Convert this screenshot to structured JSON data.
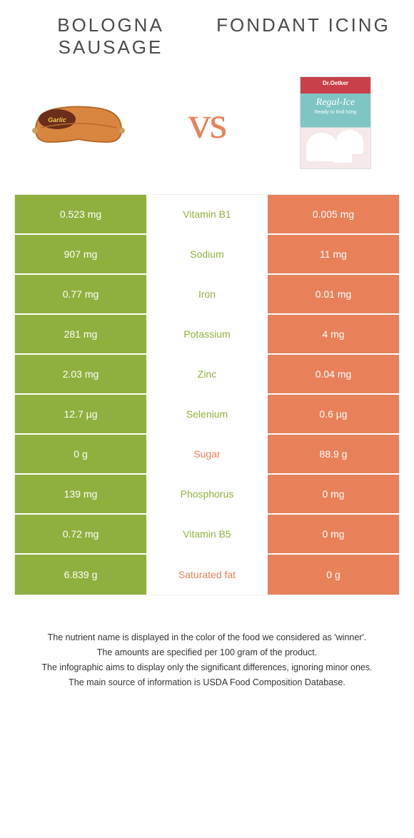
{
  "colors": {
    "green": "#8fb03e",
    "orange": "#e8815a",
    "green_text": "#8fb03e",
    "orange_text": "#e8815a"
  },
  "food_left": {
    "title": "Bologna sausage"
  },
  "food_right": {
    "title": "Fondant icing"
  },
  "vs": "vs",
  "rows": [
    {
      "nutrient": "Vitamin B1",
      "left": "0.523 mg",
      "right": "0.005 mg",
      "winner": "left"
    },
    {
      "nutrient": "Sodium",
      "left": "907 mg",
      "right": "11 mg",
      "winner": "left"
    },
    {
      "nutrient": "Iron",
      "left": "0.77 mg",
      "right": "0.01 mg",
      "winner": "left"
    },
    {
      "nutrient": "Potassium",
      "left": "281 mg",
      "right": "4 mg",
      "winner": "left"
    },
    {
      "nutrient": "Zinc",
      "left": "2.03 mg",
      "right": "0.04 mg",
      "winner": "left"
    },
    {
      "nutrient": "Selenium",
      "left": "12.7 µg",
      "right": "0.6 µg",
      "winner": "left"
    },
    {
      "nutrient": "Sugar",
      "left": "0 g",
      "right": "88.9 g",
      "winner": "right"
    },
    {
      "nutrient": "Phosphorus",
      "left": "139 mg",
      "right": "0 mg",
      "winner": "left"
    },
    {
      "nutrient": "Vitamin B5",
      "left": "0.72 mg",
      "right": "0 mg",
      "winner": "left"
    },
    {
      "nutrient": "Saturated fat",
      "left": "6.839 g",
      "right": "0 g",
      "winner": "right"
    }
  ],
  "footer": {
    "line1": "The nutrient name is displayed in the color of the food we considered as 'winner'.",
    "line2": "The amounts are specified per 100 gram of the product.",
    "line3": "The infographic aims to display only the significant differences, ignoring minor ones.",
    "line4": "The main source of information is USDA Food Composition Database."
  },
  "icing_box": {
    "brand": "Dr.Oetker",
    "name": "Regal-Ice",
    "sub": "Ready to Roll Icing"
  }
}
